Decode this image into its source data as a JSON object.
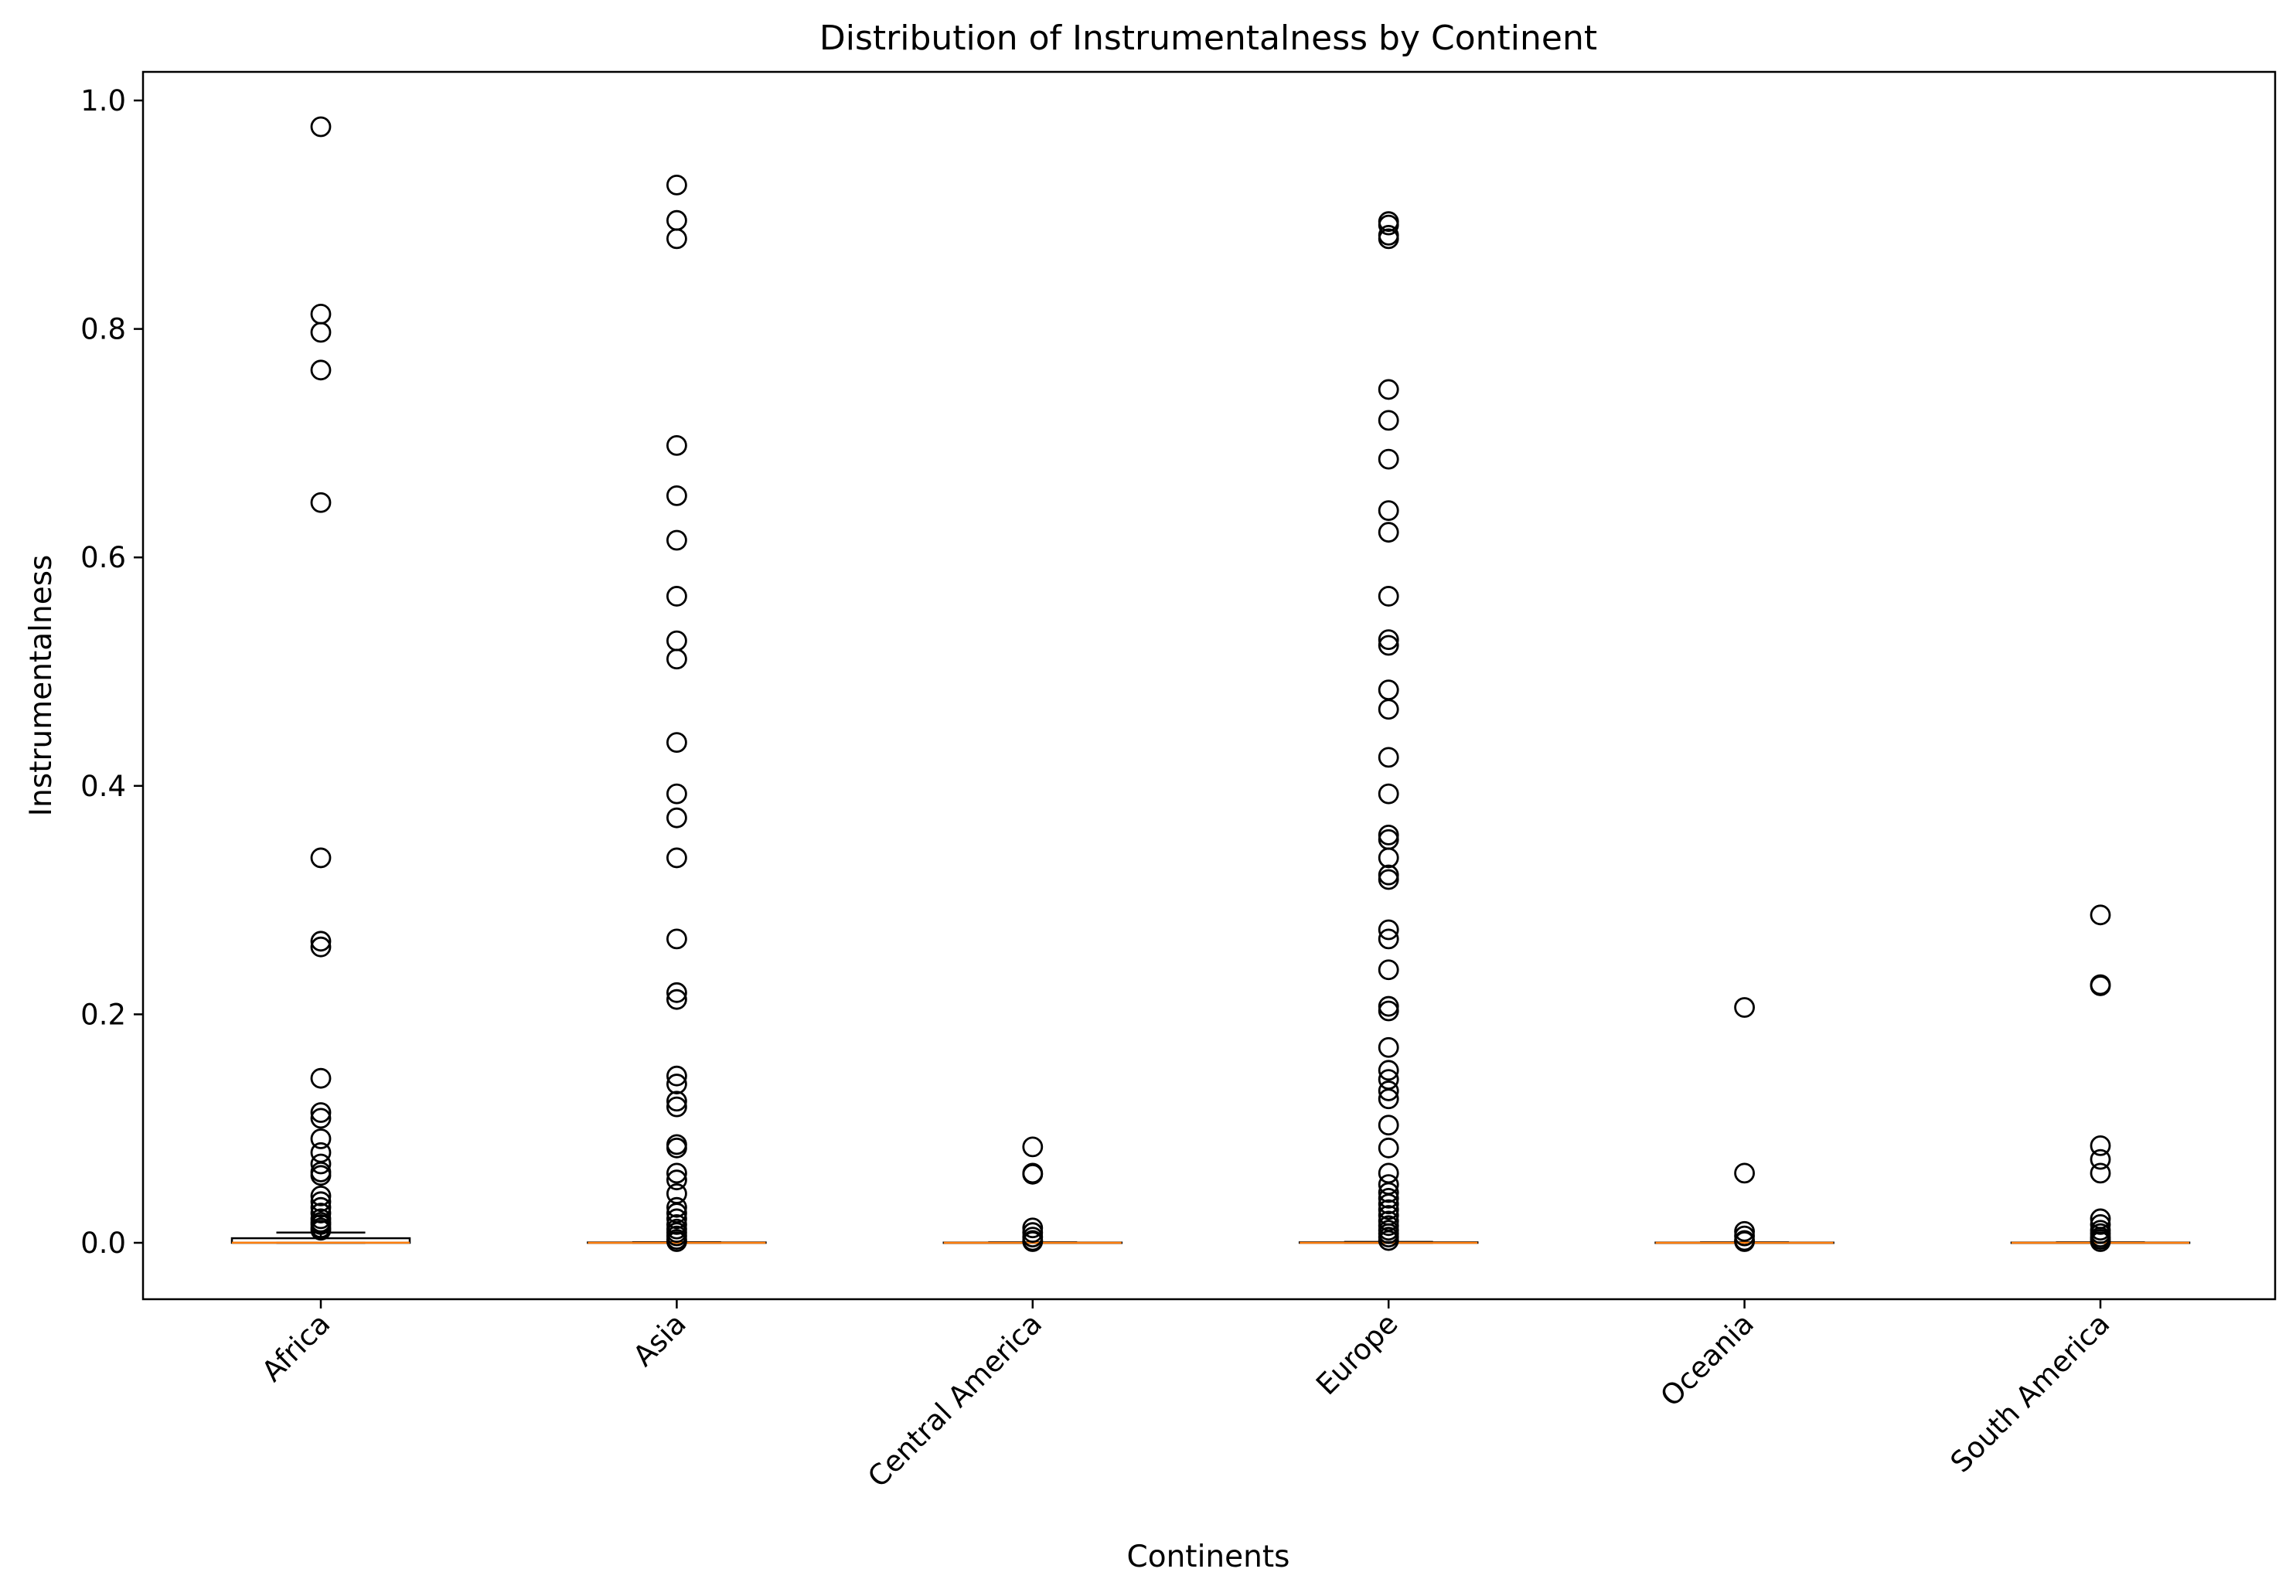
{
  "chart_data": {
    "type": "boxplot",
    "title": "Distribution of Instrumentalness by Continent",
    "xlabel": "Continents",
    "ylabel": "Instrumentalness",
    "categories": [
      "Africa",
      "Asia",
      "Central America",
      "Europe",
      "Oceania",
      "South America"
    ],
    "ylim": [
      -0.05,
      1.027
    ],
    "yticks": [
      "0.0",
      "0.2",
      "0.4",
      "0.6",
      "0.8",
      "1.0"
    ],
    "ytick_values": [
      0.0,
      0.2,
      0.4,
      0.6,
      0.8,
      1.0
    ],
    "grid": false,
    "legend": "none",
    "colors": {
      "box": "#000000",
      "median": "#ff7f0e",
      "flier_edge": "#000000"
    },
    "boxes": [
      {
        "name": "Africa",
        "whislo": 0.0,
        "q1": 0.0,
        "med": 0.0001,
        "q3": 0.004,
        "whishi": 0.009,
        "fliers": [
          0.977,
          0.813,
          0.797,
          0.764,
          0.648,
          0.337,
          0.264,
          0.259,
          0.144,
          0.114,
          0.109,
          0.091,
          0.079,
          0.069,
          0.062,
          0.059,
          0.041,
          0.036,
          0.031,
          0.026,
          0.021,
          0.018,
          0.016,
          0.013,
          0.011
        ]
      },
      {
        "name": "Asia",
        "whislo": 0.0,
        "q1": 0.0,
        "med": 0.0,
        "q3": 0.0003,
        "whishi": 0.0005,
        "fliers": [
          0.926,
          0.895,
          0.879,
          0.698,
          0.654,
          0.615,
          0.566,
          0.527,
          0.511,
          0.438,
          0.393,
          0.372,
          0.337,
          0.266,
          0.219,
          0.213,
          0.146,
          0.139,
          0.124,
          0.119,
          0.086,
          0.083,
          0.061,
          0.055,
          0.043,
          0.031,
          0.026,
          0.021,
          0.016,
          0.012,
          0.009,
          0.006,
          0.003,
          0.001
        ]
      },
      {
        "name": "Central America",
        "whislo": 0.0,
        "q1": 0.0,
        "med": 0.0,
        "q3": 0.0002,
        "whishi": 0.0004,
        "fliers": [
          0.084,
          0.061,
          0.06,
          0.013,
          0.009,
          0.005,
          0.002,
          0.001
        ]
      },
      {
        "name": "Europe",
        "whislo": 0.0,
        "q1": 0.0,
        "med": 0.0,
        "q3": 0.0004,
        "whishi": 0.0008,
        "fliers": [
          0.894,
          0.891,
          0.882,
          0.879,
          0.747,
          0.72,
          0.686,
          0.641,
          0.622,
          0.566,
          0.528,
          0.523,
          0.484,
          0.467,
          0.425,
          0.393,
          0.357,
          0.353,
          0.337,
          0.322,
          0.318,
          0.274,
          0.266,
          0.239,
          0.207,
          0.203,
          0.171,
          0.151,
          0.143,
          0.133,
          0.126,
          0.103,
          0.083,
          0.061,
          0.051,
          0.044,
          0.039,
          0.034,
          0.029,
          0.024,
          0.019,
          0.015,
          0.011,
          0.008,
          0.005,
          0.002
        ]
      },
      {
        "name": "Oceania",
        "whislo": 0.0,
        "q1": 0.0,
        "med": 0.0,
        "q3": 0.0002,
        "whishi": 0.0004,
        "fliers": [
          0.206,
          0.061,
          0.01,
          0.006,
          0.002,
          0.001
        ]
      },
      {
        "name": "South America",
        "whislo": 0.0,
        "q1": 0.0,
        "med": 0.0,
        "q3": 0.0002,
        "whishi": 0.0004,
        "fliers": [
          0.287,
          0.226,
          0.225,
          0.085,
          0.073,
          0.061,
          0.021,
          0.016,
          0.011,
          0.008,
          0.005,
          0.003,
          0.001
        ]
      }
    ]
  }
}
